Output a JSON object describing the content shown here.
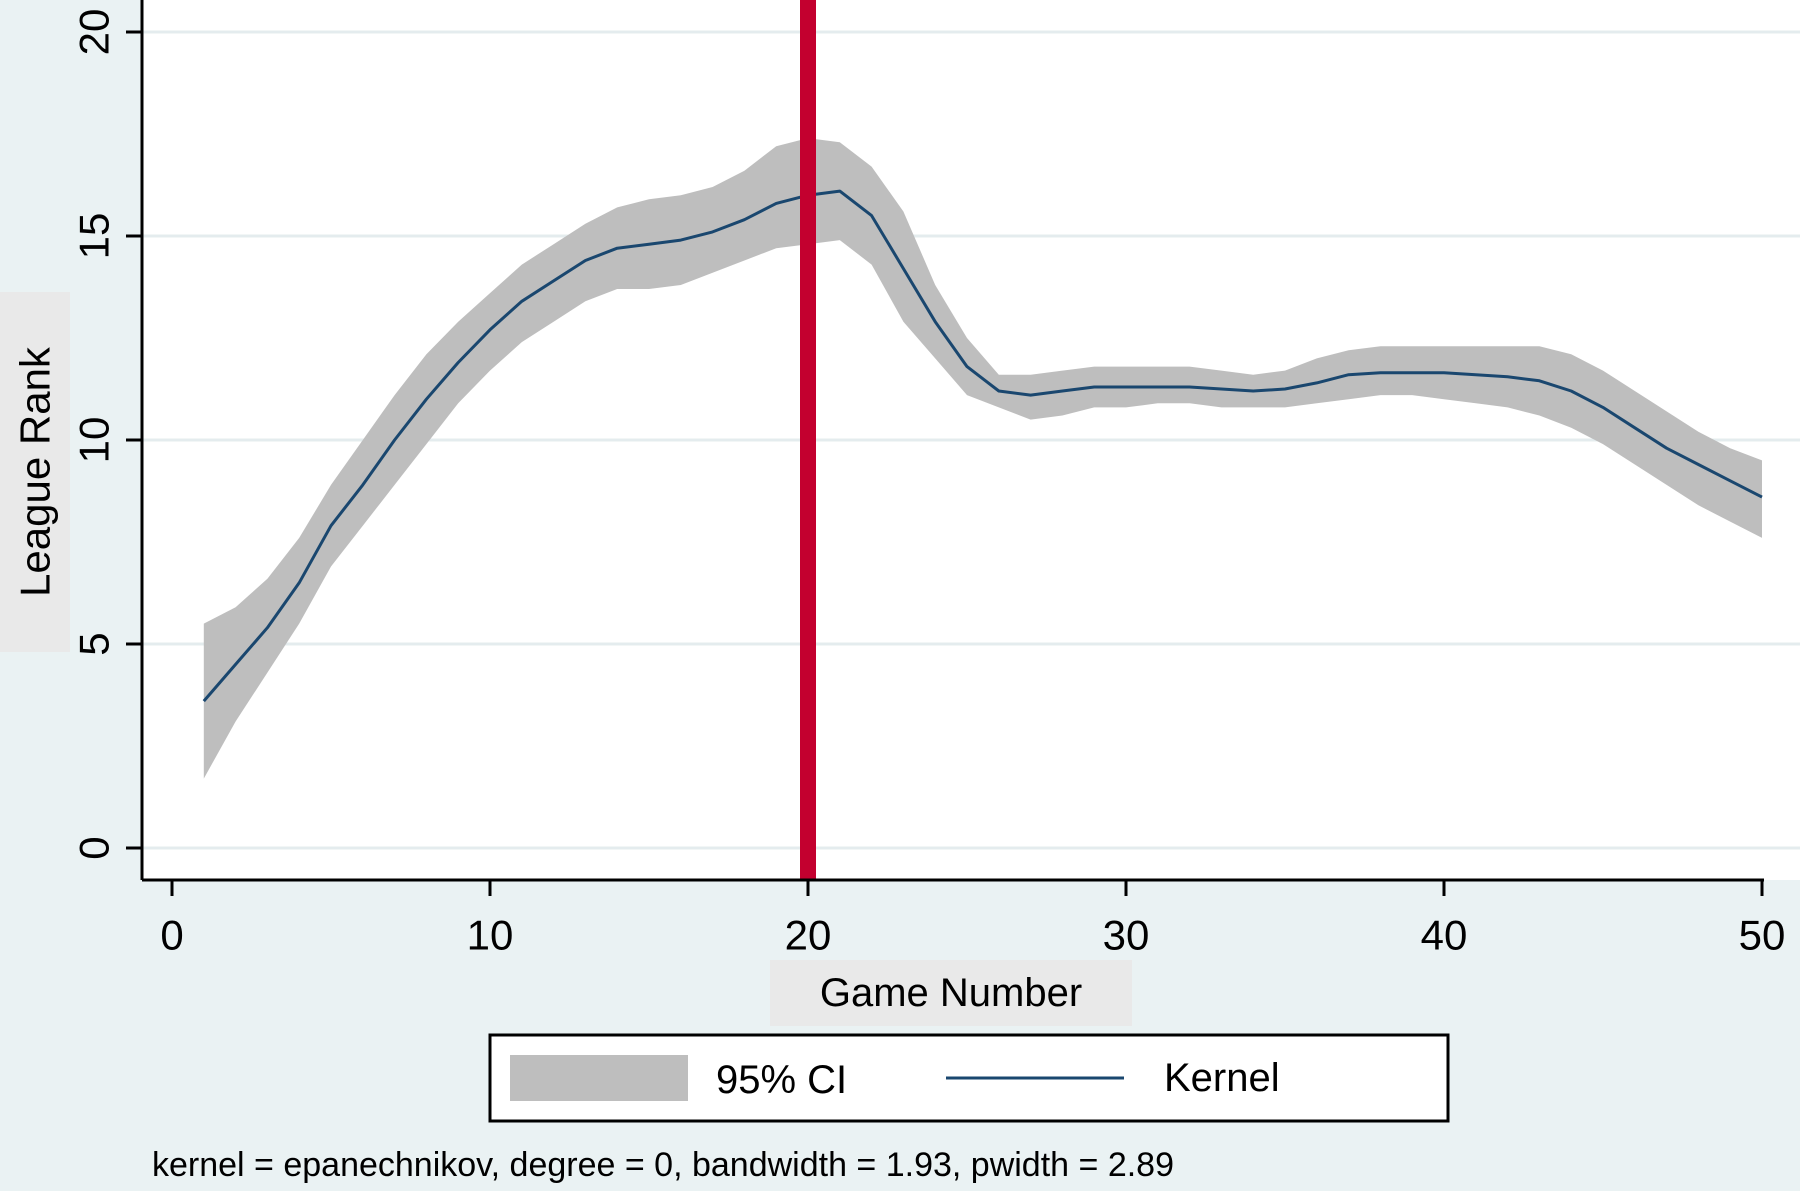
{
  "chart_data": {
    "type": "line",
    "xlabel": "Game Number",
    "ylabel": "League Rank",
    "xlim": [
      0,
      50
    ],
    "ylim": [
      0,
      20
    ],
    "xticks": [
      0,
      10,
      20,
      30,
      40,
      50
    ],
    "yticks": [
      0,
      5,
      10,
      15,
      20
    ],
    "grid": "horizontal",
    "vline": {
      "x": 20,
      "color": "#c3002f"
    },
    "legend": {
      "position": "bottom",
      "entries": [
        {
          "label": "95% CI",
          "kind": "area",
          "color": "#bebebe"
        },
        {
          "label": "Kernel",
          "kind": "line",
          "color": "#1a476f"
        }
      ]
    },
    "note": "kernel = epanechnikov, degree = 0, bandwidth = 1.93, pwidth = 2.89",
    "series": [
      {
        "name": "Kernel",
        "color": "#1a476f",
        "x": [
          1,
          2,
          3,
          4,
          5,
          6,
          7,
          8,
          9,
          10,
          11,
          12,
          13,
          14,
          15,
          16,
          17,
          18,
          19,
          20,
          21,
          22,
          23,
          24,
          25,
          26,
          27,
          28,
          29,
          30,
          31,
          32,
          33,
          34,
          35,
          36,
          37,
          38,
          39,
          40,
          41,
          42,
          43,
          44,
          45,
          46,
          47,
          48,
          49,
          50
        ],
        "y": [
          3.6,
          4.5,
          5.4,
          6.5,
          7.9,
          8.9,
          10.0,
          11.0,
          11.9,
          12.7,
          13.4,
          13.9,
          14.4,
          14.7,
          14.8,
          14.9,
          15.1,
          15.4,
          15.8,
          16.0,
          16.1,
          15.5,
          14.2,
          12.9,
          11.8,
          11.2,
          11.1,
          11.2,
          11.3,
          11.3,
          11.3,
          11.3,
          11.25,
          11.2,
          11.25,
          11.4,
          11.6,
          11.65,
          11.65,
          11.65,
          11.6,
          11.55,
          11.45,
          11.2,
          10.8,
          10.3,
          9.8,
          9.4,
          9.0,
          8.6
        ]
      },
      {
        "name": "95% CI",
        "color": "#bebebe",
        "x": [
          1,
          2,
          3,
          4,
          5,
          6,
          7,
          8,
          9,
          10,
          11,
          12,
          13,
          14,
          15,
          16,
          17,
          18,
          19,
          20,
          21,
          22,
          23,
          24,
          25,
          26,
          27,
          28,
          29,
          30,
          31,
          32,
          33,
          34,
          35,
          36,
          37,
          38,
          39,
          40,
          41,
          42,
          43,
          44,
          45,
          46,
          47,
          48,
          49,
          50
        ],
        "upper": [
          5.5,
          5.9,
          6.6,
          7.6,
          8.9,
          10.0,
          11.1,
          12.1,
          12.9,
          13.6,
          14.3,
          14.8,
          15.3,
          15.7,
          15.9,
          16.0,
          16.2,
          16.6,
          17.2,
          17.4,
          17.3,
          16.7,
          15.6,
          13.8,
          12.5,
          11.6,
          11.6,
          11.7,
          11.8,
          11.8,
          11.8,
          11.8,
          11.7,
          11.6,
          11.7,
          12.0,
          12.2,
          12.3,
          12.3,
          12.3,
          12.3,
          12.3,
          12.3,
          12.1,
          11.7,
          11.2,
          10.7,
          10.2,
          9.8,
          9.5
        ],
        "lower": [
          1.7,
          3.1,
          4.3,
          5.5,
          6.9,
          7.9,
          8.9,
          9.9,
          10.9,
          11.7,
          12.4,
          12.9,
          13.4,
          13.7,
          13.7,
          13.8,
          14.1,
          14.4,
          14.7,
          14.8,
          14.9,
          14.3,
          12.9,
          12.0,
          11.1,
          10.8,
          10.5,
          10.6,
          10.8,
          10.8,
          10.9,
          10.9,
          10.8,
          10.8,
          10.8,
          10.9,
          11.0,
          11.1,
          11.1,
          11.0,
          10.9,
          10.8,
          10.6,
          10.3,
          9.9,
          9.4,
          8.9,
          8.4,
          8.0,
          7.6
        ]
      }
    ]
  }
}
